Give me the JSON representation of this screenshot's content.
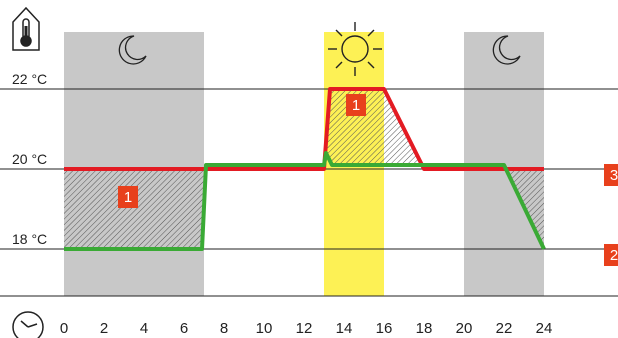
{
  "chart_data": {
    "type": "line",
    "title": "",
    "xlabel": "",
    "ylabel": "",
    "xlim": [
      0,
      24
    ],
    "ylim": [
      16,
      23
    ],
    "x_ticks": [
      "0",
      "2",
      "4",
      "6",
      "8",
      "10",
      "12",
      "14",
      "16",
      "18",
      "20",
      "22",
      "24"
    ],
    "y_ticks": [
      {
        "value": 18,
        "label": "18 °C"
      },
      {
        "value": 20,
        "label": "20 °C"
      },
      {
        "value": 22,
        "label": "22 °C"
      }
    ],
    "night_periods": [
      {
        "start": 0,
        "end": 7
      },
      {
        "start": 20,
        "end": 24
      }
    ],
    "day_period": {
      "start": 13,
      "end": 16
    },
    "series": [
      {
        "color": "#e31b23",
        "x": [
          0,
          13,
          13.3,
          16,
          18,
          24
        ],
        "y": [
          20,
          20,
          22,
          22,
          20,
          20
        ]
      },
      {
        "color": "#3aaa35",
        "x": [
          0,
          6.9,
          7.1,
          13,
          13.1,
          13.4,
          22,
          24
        ],
        "y": [
          18,
          18,
          20.1,
          20.1,
          20.4,
          20.1,
          20.1,
          18
        ]
      }
    ],
    "badges": [
      {
        "text": "1",
        "x": 3.2,
        "y": 19.3
      },
      {
        "text": "1",
        "x": 14.6,
        "y": 21.6
      },
      {
        "text": "3",
        "right_edge": true,
        "y": 19.85
      },
      {
        "text": "2",
        "right_edge": true,
        "y": 17.85
      }
    ],
    "colors": {
      "night_band": "#c8c8c8",
      "day_band": "#fdf155",
      "badge": "#e8401c",
      "hatch": "#555555",
      "gridline": "#222222"
    },
    "icons": {
      "thermometer": "thermometer-icon",
      "moon": "moon-icon",
      "sun": "sun-icon",
      "clock": "clock-icon"
    }
  }
}
